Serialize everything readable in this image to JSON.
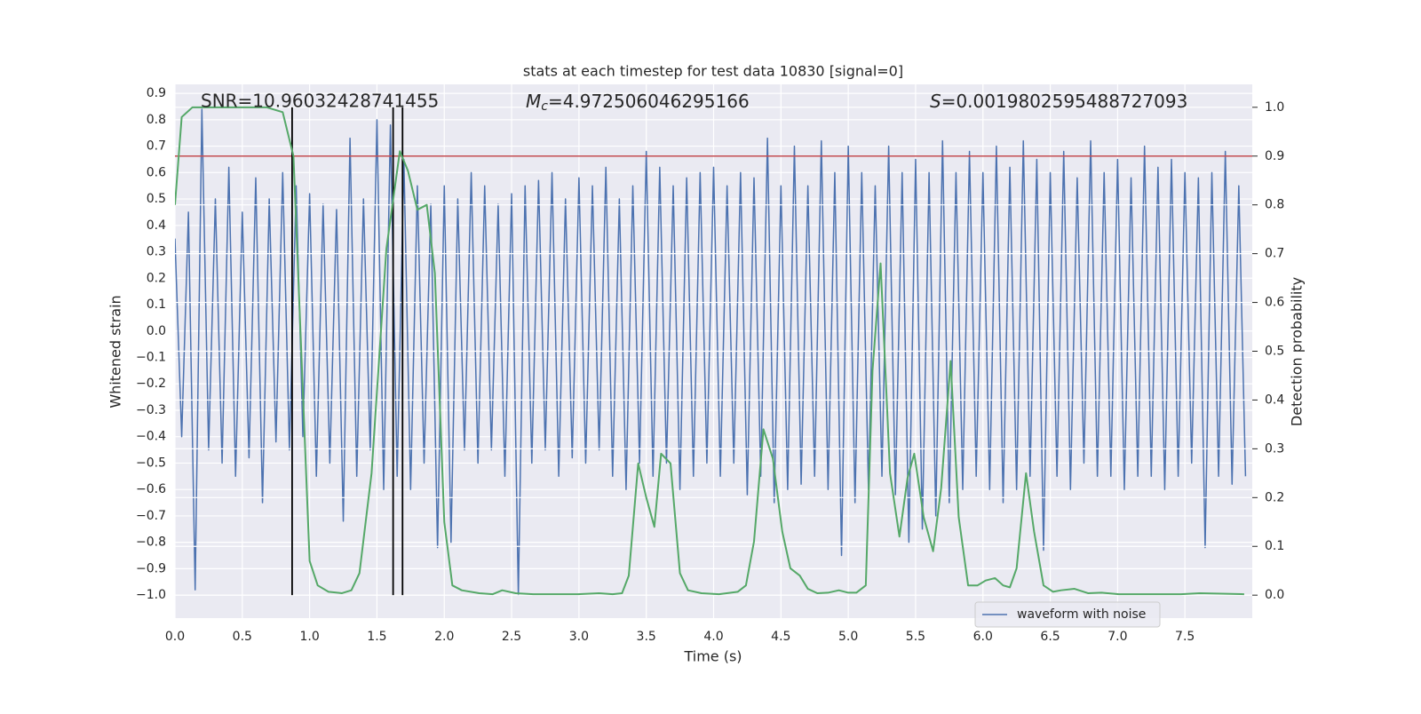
{
  "chart_data": {
    "type": "line",
    "title": "stats at each timestep for test data 10830 [signal=0]",
    "xlabel": "Time (s)",
    "ylabel": "Whitened strain",
    "y2label": "Detection probability",
    "grid": true,
    "legend": "lower right",
    "xlim": [
      0,
      8.0
    ],
    "ylim": [
      -1.087,
      0.934
    ],
    "y2lim": [
      -0.047,
      1.047
    ],
    "xticks": [
      {
        "value": 0,
        "label": "0.0"
      },
      {
        "value": 0.5,
        "label": "0.5"
      },
      {
        "value": 1,
        "label": "1.0"
      },
      {
        "value": 1.5,
        "label": "1.5"
      },
      {
        "value": 2,
        "label": "2.0"
      },
      {
        "value": 2.5,
        "label": "2.5"
      },
      {
        "value": 3,
        "label": "3.0"
      },
      {
        "value": 3.5,
        "label": "3.5"
      },
      {
        "value": 4,
        "label": "4.0"
      },
      {
        "value": 4.5,
        "label": "4.5"
      },
      {
        "value": 5,
        "label": "5.0"
      },
      {
        "value": 5.5,
        "label": "5.5"
      },
      {
        "value": 6,
        "label": "6.0"
      },
      {
        "value": 6.5,
        "label": "6.5"
      },
      {
        "value": 7,
        "label": "7.0"
      },
      {
        "value": 7.5,
        "label": "7.5"
      }
    ],
    "yticks": [
      {
        "value": -1.0,
        "label": "−1.0"
      },
      {
        "value": -0.9,
        "label": "−0.9"
      },
      {
        "value": -0.8,
        "label": "−0.8"
      },
      {
        "value": -0.7,
        "label": "−0.7"
      },
      {
        "value": -0.6,
        "label": "−0.6"
      },
      {
        "value": -0.5,
        "label": "−0.5"
      },
      {
        "value": -0.4,
        "label": "−0.4"
      },
      {
        "value": -0.3,
        "label": "−0.3"
      },
      {
        "value": -0.2,
        "label": "−0.2"
      },
      {
        "value": -0.1,
        "label": "−0.1"
      },
      {
        "value": 0,
        "label": "0.0"
      },
      {
        "value": 0.1,
        "label": "0.1"
      },
      {
        "value": 0.2,
        "label": "0.2"
      },
      {
        "value": 0.3,
        "label": "0.3"
      },
      {
        "value": 0.4,
        "label": "0.4"
      },
      {
        "value": 0.5,
        "label": "0.5"
      },
      {
        "value": 0.6,
        "label": "0.6"
      },
      {
        "value": 0.7,
        "label": "0.7"
      },
      {
        "value": 0.8,
        "label": "0.8"
      },
      {
        "value": 0.9,
        "label": "0.9"
      }
    ],
    "y2ticks": [
      {
        "value": 0,
        "label": "0.0"
      },
      0.1,
      0.2,
      0.3,
      0.4,
      0.5,
      0.6,
      0.7,
      0.8,
      0.9,
      {
        "value": 1,
        "label": "1.0"
      }
    ],
    "annotations": [
      {
        "text": "SNR=10.96032428741455"
      },
      {
        "symbol": "M",
        "subscript": "c",
        "text": "=4.972506046295166"
      },
      {
        "symbol": "S",
        "text": "=0.0019802595488727093"
      }
    ],
    "hlines": [
      {
        "y": 0.9,
        "axis": "y2",
        "color": "#c44e52"
      }
    ],
    "vlines": [
      {
        "x": 0.87,
        "ymin": 0,
        "ymax": 1,
        "axis": "y2",
        "color": "#000000"
      },
      {
        "x": 1.62,
        "ymin": 0,
        "ymax": 1,
        "axis": "y2",
        "color": "#000000"
      },
      {
        "x": 1.69,
        "ymin": 0,
        "ymax": 1,
        "axis": "y2",
        "color": "#000000"
      }
    ],
    "series": [
      {
        "name": "waveform with noise",
        "color": "#4c72b0",
        "x": [
          0,
          0.05,
          0.1,
          0.15,
          0.2,
          0.25,
          0.3,
          0.35,
          0.4,
          0.45,
          0.5,
          0.55,
          0.6,
          0.65,
          0.7,
          0.75,
          0.8,
          0.85,
          0.9,
          0.95,
          1,
          1.05,
          1.1,
          1.15,
          1.2,
          1.25,
          1.3,
          1.35,
          1.4,
          1.45,
          1.5,
          1.55,
          1.6,
          1.65,
          1.7,
          1.75,
          1.8,
          1.85,
          1.9,
          1.95,
          2,
          2.05,
          2.1,
          2.15,
          2.2,
          2.25,
          2.3,
          2.35,
          2.4,
          2.45,
          2.5,
          2.55,
          2.6,
          2.65,
          2.7,
          2.75,
          2.8,
          2.85,
          2.9,
          2.95,
          3,
          3.05,
          3.1,
          3.15,
          3.2,
          3.25,
          3.3,
          3.35,
          3.4,
          3.45,
          3.5,
          3.55,
          3.6,
          3.65,
          3.7,
          3.75,
          3.8,
          3.85,
          3.9,
          3.95,
          4,
          4.05,
          4.1,
          4.15,
          4.2,
          4.25,
          4.3,
          4.35,
          4.4,
          4.45,
          4.5,
          4.55,
          4.6,
          4.65,
          4.7,
          4.75,
          4.8,
          4.85,
          4.9,
          4.95,
          5,
          5.05,
          5.1,
          5.15,
          5.2,
          5.25,
          5.3,
          5.35,
          5.4,
          5.45,
          5.5,
          5.55,
          5.6,
          5.65,
          5.7,
          5.75,
          5.8,
          5.85,
          5.9,
          5.95,
          6,
          6.05,
          6.1,
          6.15,
          6.2,
          6.25,
          6.3,
          6.35,
          6.4,
          6.45,
          6.5,
          6.55,
          6.6,
          6.65,
          6.7,
          6.75,
          6.8,
          6.85,
          6.9,
          6.95,
          7,
          7.05,
          7.1,
          7.15,
          7.2,
          7.25,
          7.3,
          7.35,
          7.4,
          7.45,
          7.5,
          7.55,
          7.6,
          7.65,
          7.7,
          7.75,
          7.8,
          7.85,
          7.9,
          7.95
        ],
        "values": [
          0.35,
          -0.4,
          0.45,
          -0.98,
          0.84,
          -0.45,
          0.5,
          -0.5,
          0.62,
          -0.55,
          0.45,
          -0.48,
          0.58,
          -0.65,
          0.5,
          -0.42,
          0.6,
          -0.45,
          0.55,
          -0.4,
          0.52,
          -0.55,
          0.48,
          -0.5,
          0.46,
          -0.72,
          0.73,
          -0.55,
          0.5,
          -0.45,
          0.8,
          -0.6,
          0.78,
          -0.55,
          0.65,
          -0.6,
          0.55,
          -0.5,
          0.48,
          -0.82,
          0.55,
          -0.8,
          0.5,
          -0.45,
          0.6,
          -0.5,
          0.55,
          -0.45,
          0.48,
          -0.55,
          0.52,
          -1.0,
          0.55,
          -0.5,
          0.57,
          -0.45,
          0.6,
          -0.55,
          0.5,
          -0.48,
          0.58,
          -0.5,
          0.55,
          -0.45,
          0.62,
          -0.55,
          0.5,
          -0.6,
          0.55,
          -0.5,
          0.68,
          -0.55,
          0.62,
          -0.5,
          0.55,
          -0.6,
          0.58,
          -0.55,
          0.6,
          -0.5,
          0.62,
          -0.55,
          0.55,
          -0.5,
          0.6,
          -0.62,
          0.58,
          -0.55,
          0.73,
          -0.65,
          0.55,
          -0.6,
          0.7,
          -0.58,
          0.55,
          -0.55,
          0.72,
          -0.6,
          0.6,
          -0.85,
          0.7,
          -0.65,
          0.6,
          -0.6,
          0.55,
          -0.55,
          0.7,
          -0.62,
          0.6,
          -0.8,
          0.65,
          -0.75,
          0.6,
          -0.7,
          0.72,
          -0.65,
          0.6,
          -0.6,
          0.68,
          -0.55,
          0.6,
          -0.6,
          0.7,
          -0.65,
          0.62,
          -0.6,
          0.72,
          -0.55,
          0.65,
          -0.83,
          0.6,
          -0.55,
          0.68,
          -0.6,
          0.58,
          -0.5,
          0.72,
          -0.55,
          0.6,
          -0.55,
          0.65,
          -0.6,
          0.58,
          -0.55,
          0.7,
          -0.55,
          0.62,
          -0.6,
          0.65,
          -0.55,
          0.6,
          -0.5,
          0.58,
          -0.82,
          0.6,
          -0.55,
          0.68,
          -0.58,
          0.55,
          -0.55
        ]
      },
      {
        "color": "#55a868",
        "axis": "y2",
        "x": [
          0,
          0.05,
          0.13,
          0.68,
          0.8,
          0.88,
          1.0,
          1.06,
          1.14,
          1.24,
          1.31,
          1.37,
          1.46,
          1.57,
          1.67,
          1.73,
          1.8,
          1.87,
          1.93,
          2.0,
          2.06,
          2.13,
          2.26,
          2.36,
          2.43,
          2.53,
          2.66,
          2.99,
          3.15,
          3.25,
          3.32,
          3.37,
          3.44,
          3.5,
          3.56,
          3.61,
          3.68,
          3.75,
          3.81,
          3.91,
          4.04,
          4.18,
          4.24,
          4.3,
          4.37,
          4.44,
          4.51,
          4.57,
          4.64,
          4.7,
          4.77,
          4.85,
          4.93,
          5.0,
          5.06,
          5.13,
          5.18,
          5.24,
          5.31,
          5.38,
          5.44,
          5.49,
          5.56,
          5.63,
          5.69,
          5.76,
          5.82,
          5.89,
          5.96,
          6.02,
          6.09,
          6.15,
          6.2,
          6.25,
          6.32,
          6.38,
          6.45,
          6.52,
          6.58,
          6.68,
          6.78,
          6.88,
          7.01,
          7.47,
          7.61,
          7.94
        ],
        "values": [
          0.8,
          0.98,
          1.0,
          1.0,
          0.99,
          0.9,
          0.07,
          0.02,
          0.007,
          0.004,
          0.01,
          0.045,
          0.25,
          0.71,
          0.91,
          0.87,
          0.79,
          0.8,
          0.66,
          0.15,
          0.02,
          0.01,
          0.004,
          0.002,
          0.01,
          0.004,
          0.002,
          0.002,
          0.004,
          0.002,
          0.004,
          0.04,
          0.27,
          0.2,
          0.14,
          0.29,
          0.27,
          0.045,
          0.01,
          0.004,
          0.002,
          0.007,
          0.02,
          0.11,
          0.34,
          0.28,
          0.13,
          0.055,
          0.04,
          0.013,
          0.004,
          0.005,
          0.01,
          0.005,
          0.005,
          0.02,
          0.46,
          0.68,
          0.25,
          0.12,
          0.24,
          0.29,
          0.16,
          0.09,
          0.22,
          0.48,
          0.16,
          0.02,
          0.02,
          0.03,
          0.035,
          0.02,
          0.016,
          0.055,
          0.25,
          0.13,
          0.02,
          0.007,
          0.01,
          0.013,
          0.004,
          0.005,
          0.002,
          0.002,
          0.004,
          0.002
        ]
      }
    ]
  }
}
